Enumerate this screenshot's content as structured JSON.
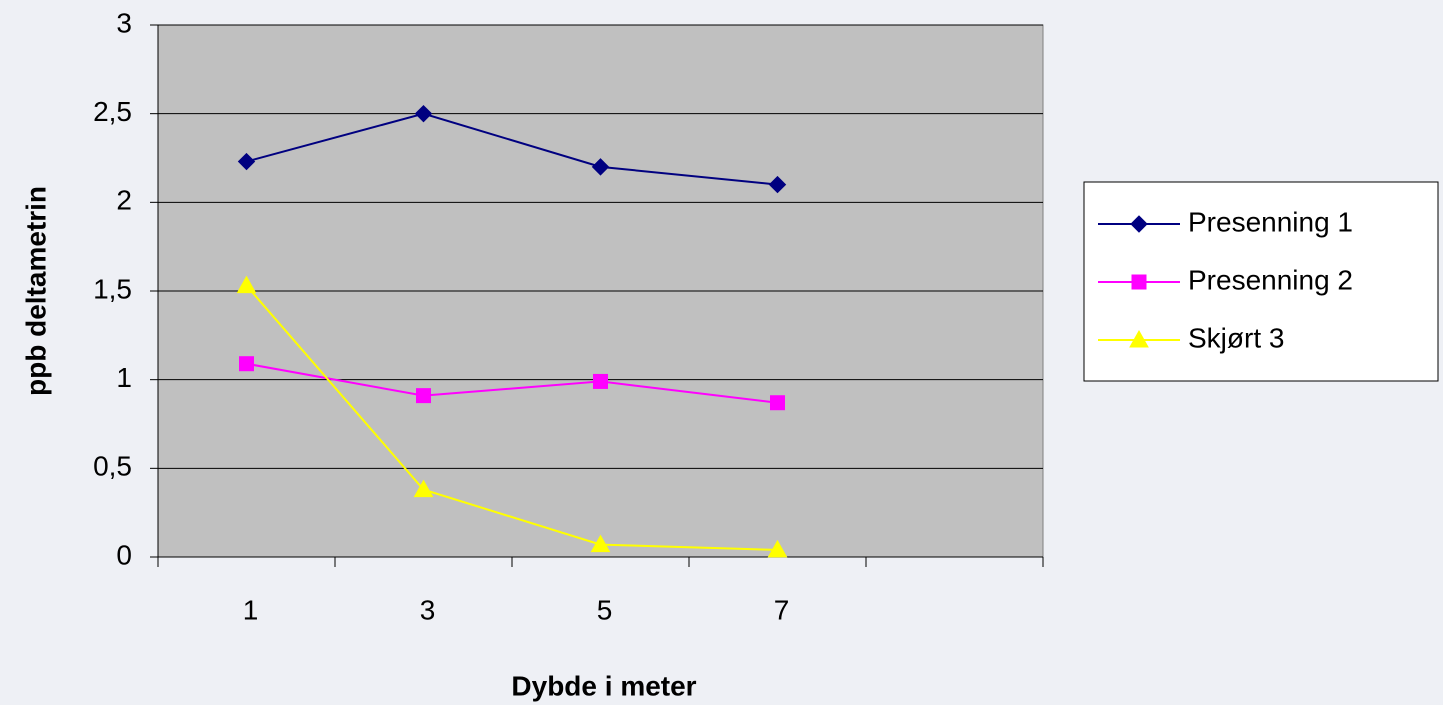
{
  "chart_data": {
    "type": "line",
    "x_label": "Dybde i meter",
    "y_label": "ppb deltametrin",
    "categories": [
      "1",
      "3",
      "5",
      "7",
      null
    ],
    "series": [
      {
        "name": "Presenning 1",
        "color": "#000080",
        "marker": "diamond",
        "values": [
          2.23,
          2.5,
          2.2,
          2.1,
          null
        ]
      },
      {
        "name": "Presenning 2",
        "color": "#ff00ff",
        "marker": "square",
        "values": [
          1.09,
          0.91,
          0.99,
          0.87,
          null
        ]
      },
      {
        "name": "Skjørt 3",
        "color": "#ffff00",
        "marker": "triangle",
        "values": [
          1.53,
          0.38,
          0.07,
          0.04,
          null
        ]
      }
    ],
    "ylim": [
      0,
      3
    ],
    "yticks": [
      0,
      {
        "value": 0.5,
        "label": "0,5"
      },
      1,
      {
        "value": 1.5,
        "label": "1,5"
      },
      2,
      {
        "value": 2.5,
        "label": "2,5"
      },
      3
    ],
    "grid": true,
    "plot_background": "#c0c0c0",
    "legend": "right"
  }
}
